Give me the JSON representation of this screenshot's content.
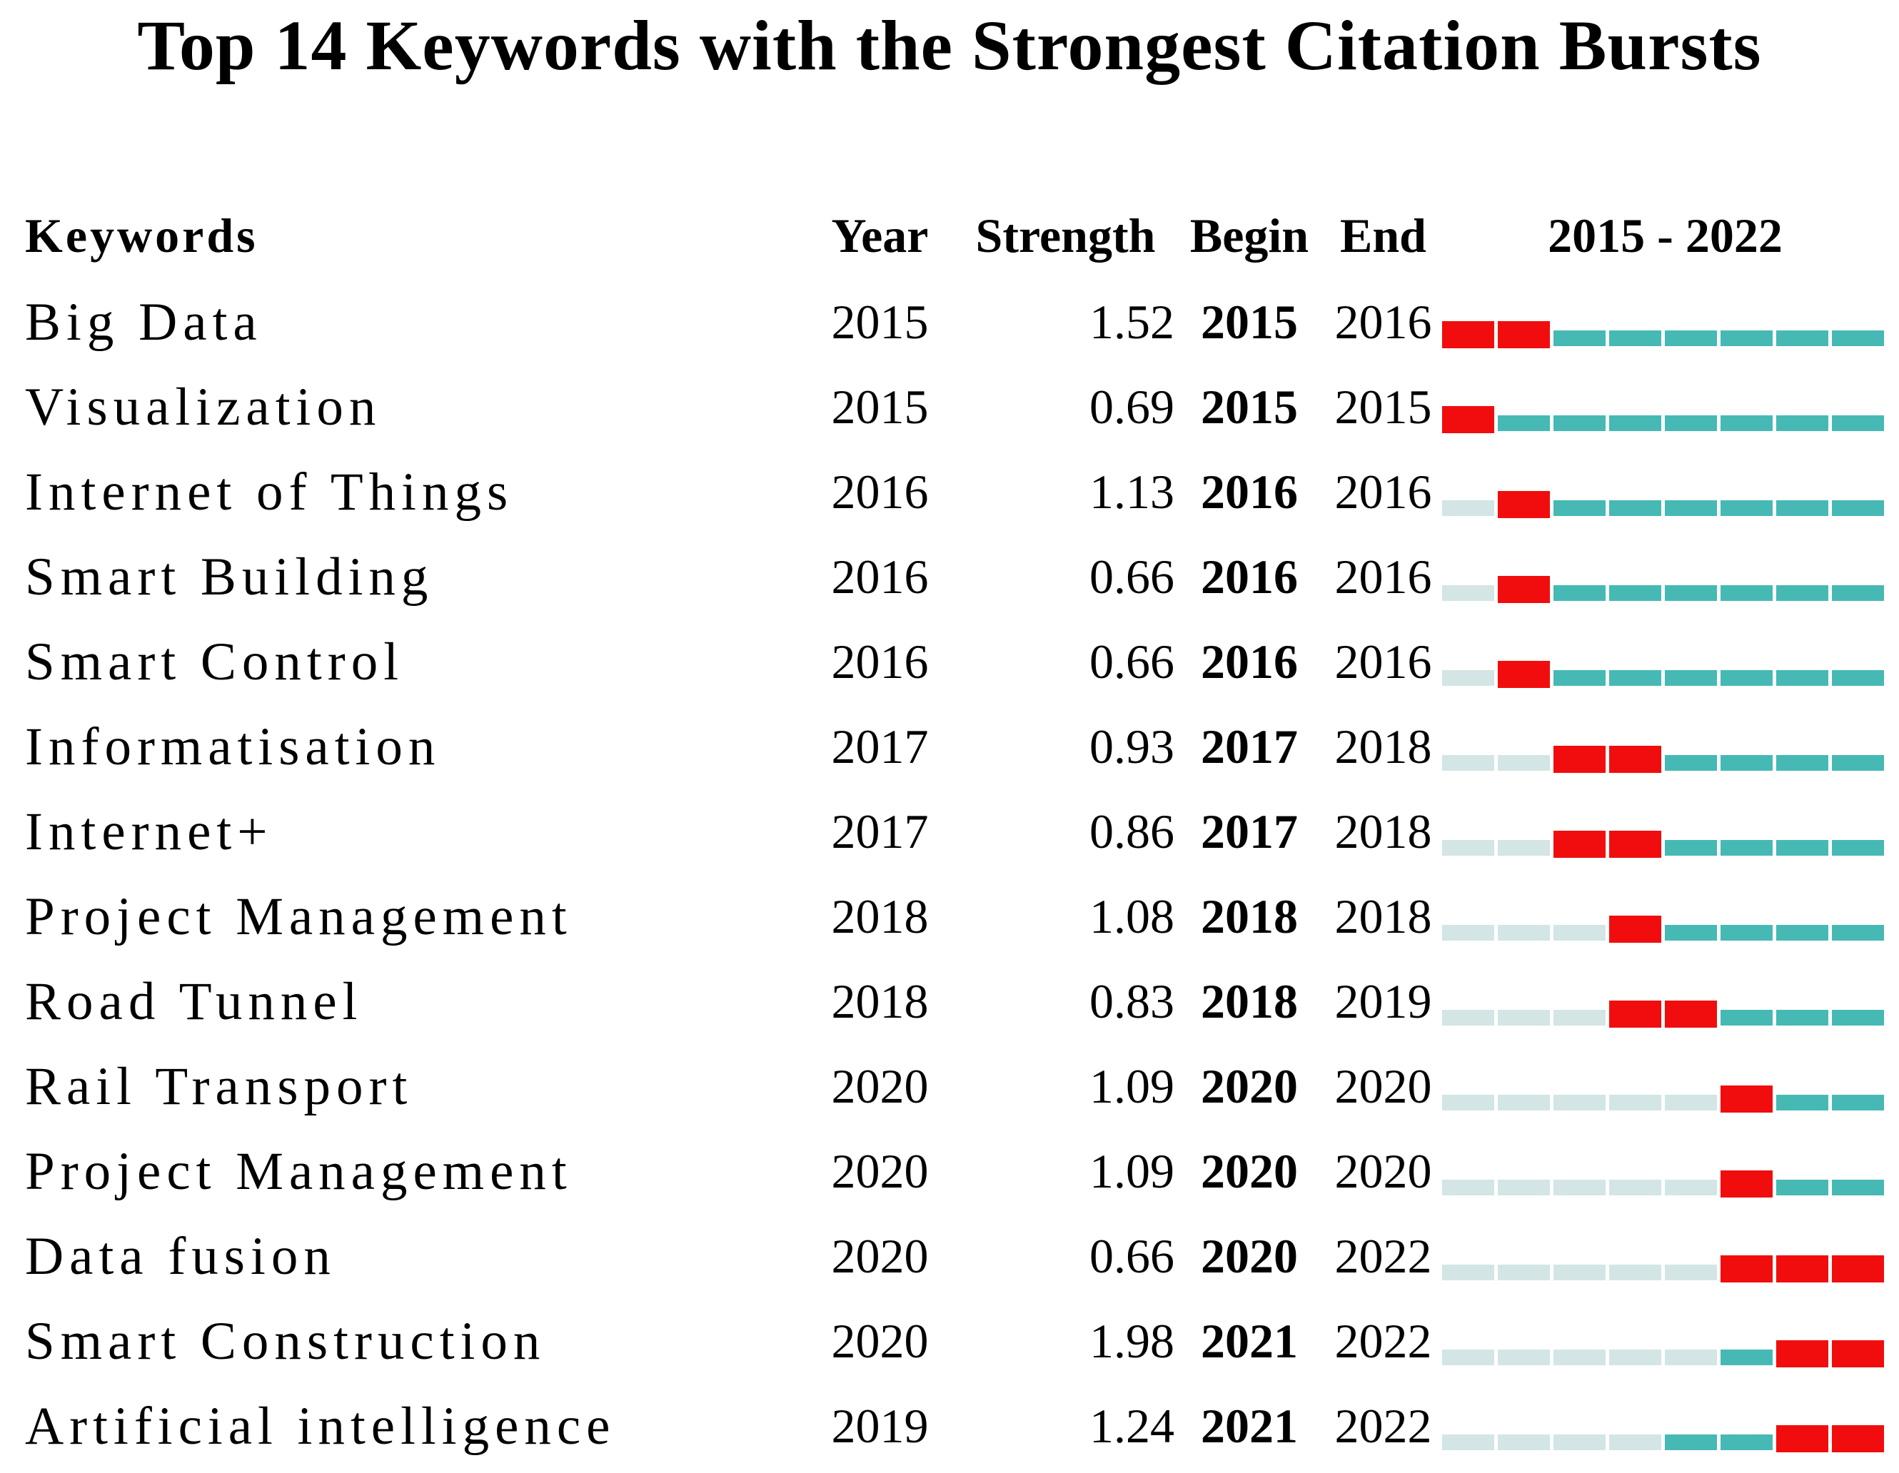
{
  "title": "Top 14 Keywords with the Strongest Citation Bursts",
  "header": {
    "keywords": "Keywords",
    "year": "Year",
    "strength": "Strength",
    "begin": "Begin",
    "end": "End",
    "timeline": "2015 - 2022"
  },
  "colors": {
    "burst": "#F10D0D",
    "active": "#46B9B4",
    "pre": "#D3E5E5"
  },
  "chart_data": {
    "type": "table",
    "title": "Top 14 Keywords with the Strongest Citation Bursts",
    "columns": [
      "Keywords",
      "Year",
      "Strength",
      "Begin",
      "End",
      "2015 - 2022"
    ],
    "timeline_start": 2015,
    "timeline_end": 2022,
    "segment_legend": {
      "burst": "red segments: years of citation burst (Begin–End)",
      "active": "teal segments: years after first appearance without burst",
      "pre": "pale segments: years before keyword first appeared"
    },
    "rows": [
      {
        "keyword": "Big Data",
        "year": "2015",
        "strength": "1.52",
        "begin": "2015",
        "end": "2016"
      },
      {
        "keyword": "Visualization",
        "year": "2015",
        "strength": "0.69",
        "begin": "2015",
        "end": "2015"
      },
      {
        "keyword": "Internet of Things",
        "year": "2016",
        "strength": "1.13",
        "begin": "2016",
        "end": "2016"
      },
      {
        "keyword": "Smart Building",
        "year": "2016",
        "strength": "0.66",
        "begin": "2016",
        "end": "2016"
      },
      {
        "keyword": "Smart Control",
        "year": "2016",
        "strength": "0.66",
        "begin": "2016",
        "end": "2016"
      },
      {
        "keyword": "Informatisation",
        "year": "2017",
        "strength": "0.93",
        "begin": "2017",
        "end": "2018"
      },
      {
        "keyword": "Internet+",
        "year": "2017",
        "strength": "0.86",
        "begin": "2017",
        "end": "2018"
      },
      {
        "keyword": "Project Management",
        "year": "2018",
        "strength": "1.08",
        "begin": "2018",
        "end": "2018"
      },
      {
        "keyword": "Road Tunnel",
        "year": "2018",
        "strength": "0.83",
        "begin": "2018",
        "end": "2019"
      },
      {
        "keyword": "Rail Transport",
        "year": "2020",
        "strength": "1.09",
        "begin": "2020",
        "end": "2020"
      },
      {
        "keyword": "Project Management",
        "year": "2020",
        "strength": "1.09",
        "begin": "2020",
        "end": "2020"
      },
      {
        "keyword": "Data fusion",
        "year": "2020",
        "strength": "0.66",
        "begin": "2020",
        "end": "2022"
      },
      {
        "keyword": "Smart Construction",
        "year": "2020",
        "strength": "1.98",
        "begin": "2021",
        "end": "2022"
      },
      {
        "keyword": "Artificial intelligence",
        "year": "2019",
        "strength": "1.24",
        "begin": "2021",
        "end": "2022"
      }
    ]
  }
}
